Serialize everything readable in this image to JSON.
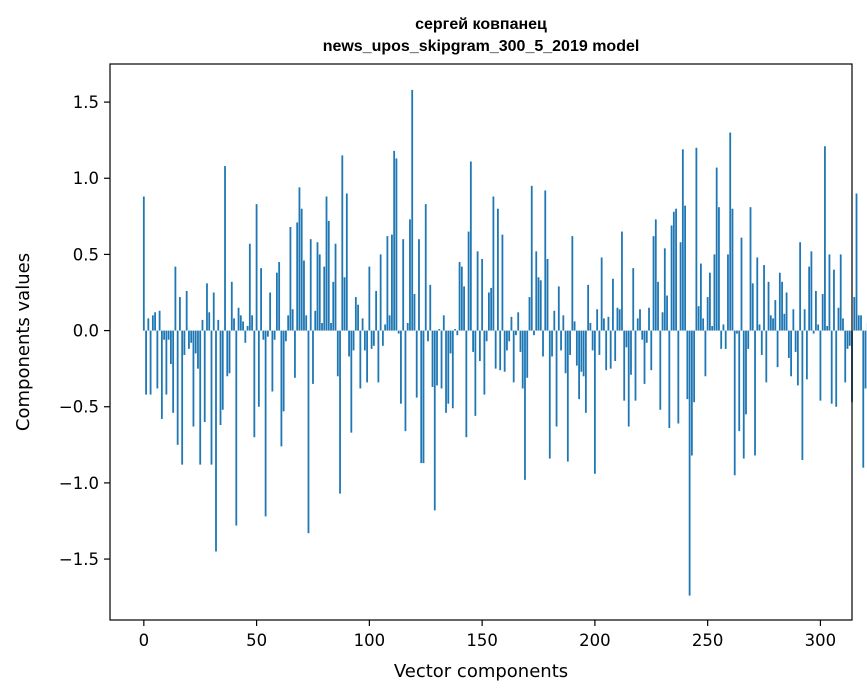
{
  "chart_data": {
    "type": "bar",
    "title": "сергей ковпанец",
    "subtitle": "news_upos_skipgram_300_5_2019 model",
    "xlabel": "Vector components",
    "ylabel": "Components values",
    "xlim": [
      -15,
      314
    ],
    "ylim": [
      -1.9,
      1.75
    ],
    "x_ticks": [
      0,
      50,
      100,
      150,
      200,
      250,
      300
    ],
    "y_ticks": [
      -1.5,
      -1.0,
      -0.5,
      0.0,
      0.5,
      1.0,
      1.5
    ],
    "x_tick_labels": [
      "0",
      "50",
      "100",
      "150",
      "200",
      "250",
      "300"
    ],
    "y_tick_labels": [
      "−1.5",
      "−1.0",
      "−0.5",
      "0.0",
      "0.5",
      "1.0",
      "1.5"
    ],
    "grid": false,
    "bar_color": "#1f77b4",
    "series": [
      {
        "values": [
          0.88,
          -0.42,
          0.08,
          -0.42,
          0.1,
          0.12,
          -0.38,
          0.13,
          -0.58,
          -0.06,
          -0.42,
          -0.06,
          -0.22,
          -0.54,
          0.42,
          -0.75,
          0.22,
          -0.88,
          -0.16,
          0.26,
          -0.12,
          -0.08,
          -0.63,
          -0.15,
          -0.25,
          -0.88,
          0.07,
          -0.6,
          0.31,
          0.12,
          -0.88,
          0.25,
          -1.45,
          0.07,
          -0.62,
          -0.52,
          1.08,
          -0.3,
          -0.28,
          0.32,
          0.08,
          -1.28,
          0.15,
          0.1,
          0.06,
          -0.08,
          0.03,
          0.57,
          0.1,
          -0.7,
          0.83,
          -0.5,
          0.41,
          -0.06,
          -1.22,
          -0.04,
          0.25,
          -0.4,
          -0.06,
          0.38,
          0.45,
          -0.76,
          -0.53,
          -0.07,
          0.1,
          0.68,
          0.14,
          -0.31,
          0.71,
          0.94,
          0.8,
          0.46,
          0.1,
          -1.33,
          0.6,
          -0.35,
          0.13,
          0.58,
          0.5,
          0.05,
          0.42,
          0.88,
          0.72,
          0.05,
          0.32,
          0.57,
          -0.3,
          -1.07,
          1.15,
          0.35,
          0.9,
          -0.17,
          -0.67,
          -0.13,
          0.22,
          0.17,
          -0.38,
          0.08,
          -0.13,
          -0.34,
          0.42,
          -0.12,
          -0.1,
          0.26,
          -0.34,
          0.5,
          -0.1,
          0.04,
          0.62,
          0.1,
          0.63,
          1.18,
          1.13,
          -0.02,
          -0.48,
          0.6,
          -0.66,
          0.05,
          0.73,
          1.58,
          0.24,
          -0.44,
          0.6,
          -0.87,
          -0.87,
          0.83,
          -0.07,
          0.3,
          -0.37,
          -1.18,
          -0.36,
          0.01,
          -0.38,
          0.1,
          -0.54,
          -0.48,
          -0.15,
          -0.51,
          0.01,
          -0.03,
          0.45,
          0.42,
          0.29,
          -0.7,
          0.65,
          1.11,
          -0.14,
          -0.56,
          0.52,
          -0.2,
          0.47,
          -0.42,
          -0.07,
          0.25,
          0.28,
          0.88,
          -0.25,
          0.8,
          -0.26,
          0.63,
          -0.27,
          -0.13,
          -0.07,
          0.09,
          -0.34,
          -0.03,
          0.12,
          -0.14,
          -0.38,
          -0.98,
          -0.31,
          0.22,
          0.95,
          -0.03,
          0.52,
          0.35,
          0.33,
          -0.17,
          0.92,
          0.47,
          -0.84,
          -0.17,
          0.13,
          -0.63,
          0.29,
          -0.13,
          0.1,
          -0.28,
          -0.86,
          -0.16,
          0.62,
          0.06,
          -0.23,
          -0.45,
          -0.27,
          -0.3,
          -0.54,
          0.3,
          0.05,
          -0.13,
          -0.94,
          0.14,
          -0.16,
          0.48,
          0.08,
          -0.26,
          0.09,
          -0.25,
          0.34,
          -0.2,
          0.15,
          0.14,
          0.65,
          -0.46,
          -0.11,
          -0.63,
          -0.29,
          0.41,
          -0.46,
          0.08,
          0.14,
          -0.06,
          -0.35,
          -0.08,
          0.15,
          -0.26,
          0.62,
          0.73,
          0.32,
          -0.52,
          0.12,
          0.54,
          0.23,
          -0.64,
          0.69,
          0.78,
          0.8,
          -0.61,
          0.58,
          1.19,
          0.82,
          -0.45,
          -1.74,
          -0.82,
          -0.47,
          1.2,
          0.16,
          0.44,
          0.08,
          -0.3,
          0.22,
          0.38,
          0.03,
          0.5,
          1.07,
          0.81,
          -0.12,
          0.04,
          -0.12,
          0.5,
          1.3,
          0.8,
          -0.95,
          -0.02,
          -0.66,
          0.61,
          -0.84,
          -0.55,
          -0.12,
          0.81,
          0.31,
          -0.82,
          0.48,
          0.04,
          -0.16,
          0.43,
          -0.34,
          0.32,
          0.1,
          0.08,
          0.2,
          -0.24,
          0.38,
          0.32,
          0.11,
          0.25,
          -0.18,
          -0.3,
          0.14,
          -0.14,
          -0.36,
          0.58,
          -0.85,
          0.14,
          -0.32,
          0.42,
          0.52,
          -0.02,
          0.26,
          0.04,
          -0.46,
          0.24,
          1.21,
          0.03,
          0.5,
          -0.48,
          0.4,
          -0.5,
          0.15,
          0.5,
          0.08,
          -0.34,
          -0.12,
          -0.1,
          -0.47,
          0.22,
          0.9,
          0.1,
          0.1,
          -0.9,
          -0.38,
          0.05,
          0.28,
          0.46
        ]
      }
    ]
  }
}
